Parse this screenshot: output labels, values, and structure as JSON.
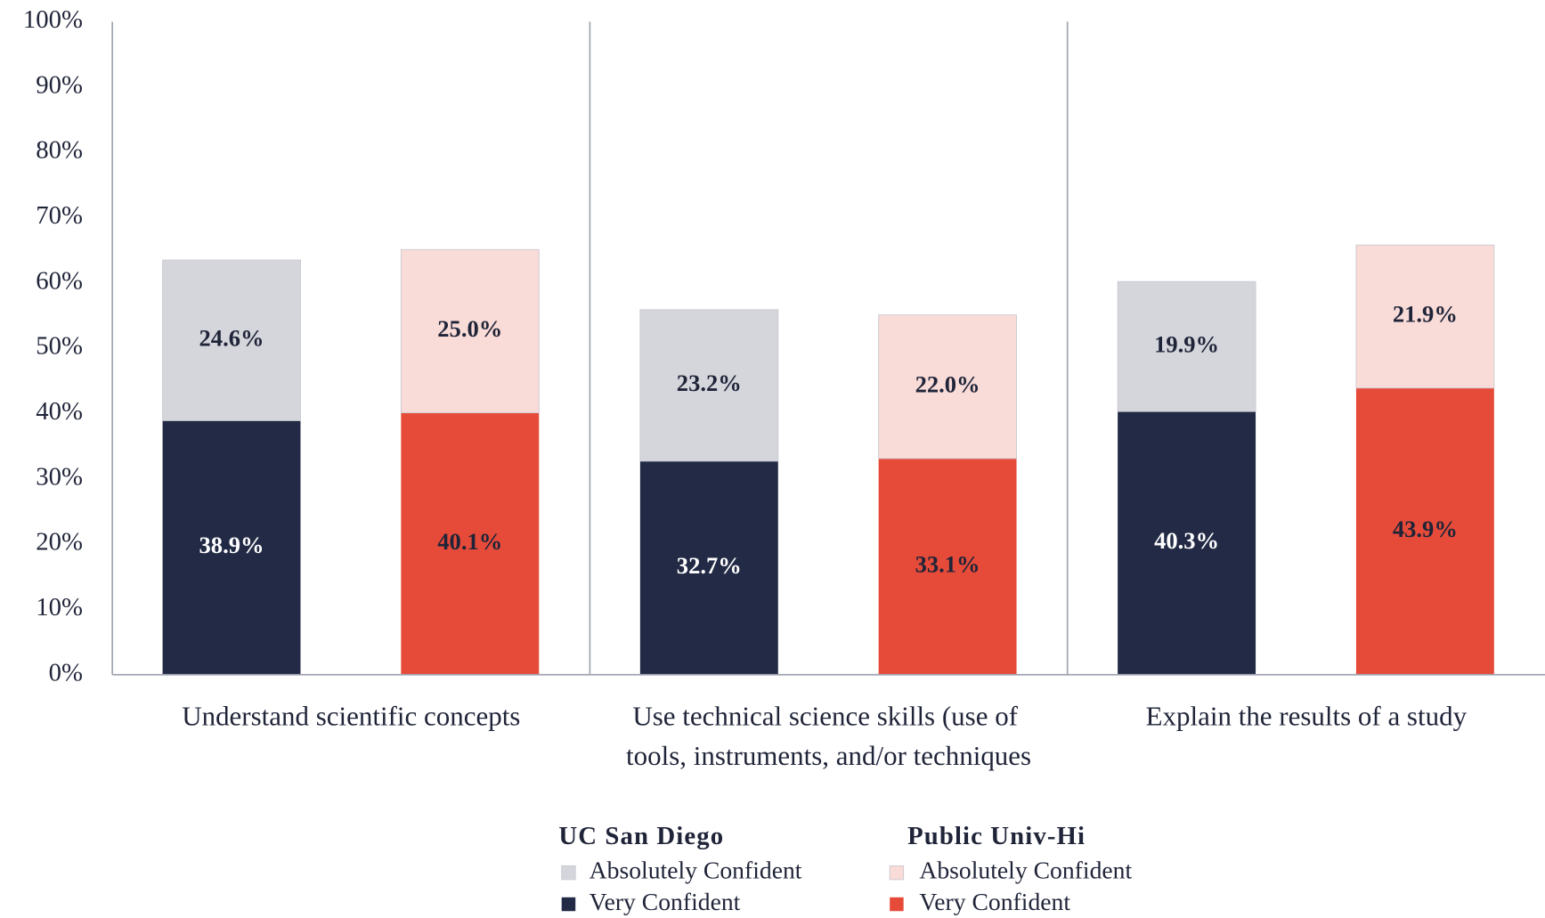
{
  "chart_data": {
    "type": "grouped_stacked_bar",
    "categories": [
      "Understand scientific concepts",
      "Use technical science skills (use of tools, instruments, and/or techniques",
      "Explain the results of a study"
    ],
    "ylim": [
      0,
      100
    ],
    "yticks": [
      {
        "value": 0,
        "label": "0%"
      },
      {
        "value": 10,
        "label": "10%"
      },
      {
        "value": 20,
        "label": "20%"
      },
      {
        "value": 30,
        "label": "30%"
      },
      {
        "value": 40,
        "label": "40%"
      },
      {
        "value": 50,
        "label": "50%"
      },
      {
        "value": 60,
        "label": "60%"
      },
      {
        "value": 70,
        "label": "70%"
      },
      {
        "value": 80,
        "label": "80%"
      },
      {
        "value": 90,
        "label": "90%"
      },
      {
        "value": 100,
        "label": "100%"
      }
    ],
    "grid": false,
    "groups": [
      {
        "name": "UC San Diego",
        "series": [
          {
            "name": "Very Confident",
            "color": "#222a45",
            "values": [
              38.9,
              32.7,
              40.3
            ],
            "value_labels": [
              "38.9%",
              "32.7%",
              "40.3%"
            ]
          },
          {
            "name": "Absolutely Confident",
            "color": "#d5d6dc",
            "values": [
              24.6,
              23.2,
              19.9
            ],
            "value_labels": [
              "24.6%",
              "23.2%",
              "19.9%"
            ]
          }
        ]
      },
      {
        "name": "Public Univ-Hi",
        "series": [
          {
            "name": "Very Confident",
            "color": "#e64b39",
            "values": [
              40.1,
              33.1,
              43.9
            ],
            "value_labels": [
              "40.1%",
              "33.1%",
              "43.9%"
            ]
          },
          {
            "name": "Absolutely Confident",
            "color": "#f9dbd8",
            "values": [
              25.0,
              22.0,
              21.9
            ],
            "value_labels": [
              "25.0%",
              "22.0%",
              "21.9%"
            ]
          }
        ]
      }
    ]
  }
}
